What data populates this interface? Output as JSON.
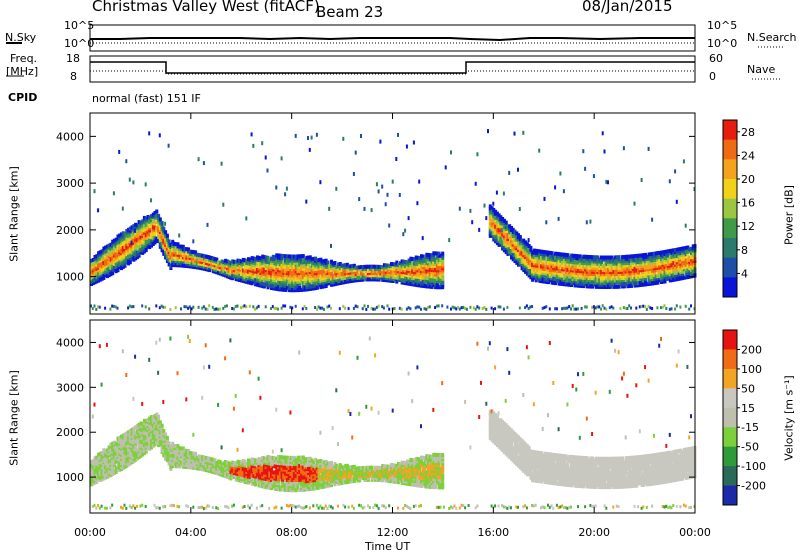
{
  "header": {
    "station": "Christmas Valley West (fitACF)",
    "beam": "Beam 23",
    "date": "08/Jan/2015"
  },
  "panels": {
    "nsky_label": "N.Sky",
    "nsearch_label": "N.Search",
    "freq_label_line1": "Freq.",
    "freq_label_line2": "[MHz]",
    "nave_label": "Nave",
    "cpid_label": "CPID",
    "cpid_value": "normal (fast) 151 IF",
    "noise_ticks_top": "10^5",
    "noise_ticks_bottom": "10^0",
    "freq_ticks": [
      "18",
      "8"
    ],
    "nave_ticks": [
      "60",
      "0"
    ]
  },
  "chart_data": [
    {
      "type": "heatmap",
      "title": "",
      "xlabel": "Time UT",
      "ylabel": "Slant Range [km]",
      "xlim": [
        0,
        24
      ],
      "ylim": [
        200,
        4500
      ],
      "x_ticks": [
        "00:00",
        "04:00",
        "08:00",
        "12:00",
        "16:00",
        "20:00",
        "00:00"
      ],
      "y_ticks": [
        "1000",
        "2000",
        "3000",
        "4000"
      ],
      "colorbar": {
        "label": "Power [dB]",
        "ticks": [
          "4",
          "8",
          "12",
          "16",
          "20",
          "24",
          "28"
        ],
        "range": [
          0,
          30
        ],
        "colors": [
          "#0a14d8",
          "#1d4fa8",
          "#2a7a6e",
          "#3f9a4a",
          "#9ac640",
          "#f2d11a",
          "#f4a31c",
          "#f06a14",
          "#e61e10"
        ]
      }
    },
    {
      "type": "heatmap",
      "title": "",
      "xlabel": "Time UT",
      "ylabel": "Slant Range [km]",
      "xlim": [
        0,
        24
      ],
      "ylim": [
        200,
        4500
      ],
      "x_ticks": [
        "00:00",
        "04:00",
        "08:00",
        "12:00",
        "16:00",
        "20:00",
        "00:00"
      ],
      "y_ticks": [
        "1000",
        "2000",
        "3000",
        "4000"
      ],
      "colorbar": {
        "label": "Velocity [m s⁻¹]",
        "ticks": [
          "200",
          "100",
          "50",
          "15",
          "-15",
          "-50",
          "-100",
          "-200"
        ],
        "colors": [
          "#1a2aa8",
          "#2a6a58",
          "#2f9a3a",
          "#7cd13a",
          "#bfbfae",
          "#c8c8c0",
          "#f2a424",
          "#f36a14",
          "#e61410"
        ]
      }
    }
  ]
}
